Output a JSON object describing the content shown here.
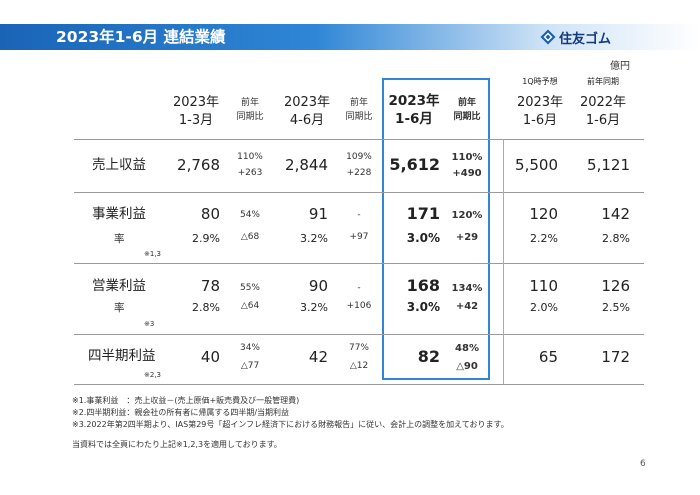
{
  "title": "2023年1-6月 連結業績",
  "logo": {
    "text": "住友ゴム",
    "icon": "sumitomo-diamond-logo"
  },
  "unit": "億円",
  "columns": {
    "c1": {
      "line1": "2023年",
      "line2": "1-3月"
    },
    "c2": {
      "line1": "前年",
      "line2": "同期比"
    },
    "c3": {
      "line1": "2023年",
      "line2": "4-6月"
    },
    "c4": {
      "line1": "前年",
      "line2": "同期比"
    },
    "c5": {
      "line1": "2023年",
      "line2": "1-6月"
    },
    "c6": {
      "line1": "前年",
      "line2": "同期比"
    },
    "c7": {
      "note": "1Q時予想",
      "line1": "2023年",
      "line2": "1-6月"
    },
    "c8": {
      "note": "前年同期",
      "line1": "2022年",
      "line2": "1-6月"
    }
  },
  "rows": {
    "revenue": {
      "label": "売上収益",
      "q1": "2,768",
      "q1_pct": "110%",
      "q1_diff": "+263",
      "q2": "2,844",
      "q2_pct": "109%",
      "q2_diff": "+228",
      "h1": "5,612",
      "h1_pct": "110%",
      "h1_diff": "+490",
      "forecast": "5,500",
      "prior": "5,121"
    },
    "business_profit": {
      "label": "事業利益",
      "q1": "80",
      "q1_pct": "54%",
      "q1_diff": "△68",
      "q2": "91",
      "q2_pct": "-",
      "q2_diff": "+97",
      "h1": "171",
      "h1_pct": "120%",
      "h1_diff": "+29",
      "forecast": "120",
      "prior": "142",
      "rate_label": "率",
      "q1_rate": "2.9%",
      "q2_rate": "3.2%",
      "h1_rate": "3.0%",
      "forecast_rate": "2.2%",
      "prior_rate": "2.8%",
      "note": "※1,3"
    },
    "operating_profit": {
      "label": "営業利益",
      "q1": "78",
      "q1_pct": "55%",
      "q1_diff": "△64",
      "q2": "90",
      "q2_pct": "-",
      "q2_diff": "+106",
      "h1": "168",
      "h1_pct": "134%",
      "h1_diff": "+42",
      "forecast": "110",
      "prior": "126",
      "rate_label": "率",
      "q1_rate": "2.8%",
      "q2_rate": "3.2%",
      "h1_rate": "3.0%",
      "forecast_rate": "2.0%",
      "prior_rate": "2.5%",
      "note": "※3"
    },
    "net_profit": {
      "label": "四半期利益",
      "q1": "40",
      "q1_pct": "34%",
      "q1_diff": "△77",
      "q2": "42",
      "q2_pct": "77%",
      "q2_diff": "△12",
      "h1": "82",
      "h1_pct": "48%",
      "h1_diff": "△90",
      "forecast": "65",
      "prior": "172",
      "note": "※2,3"
    }
  },
  "footnotes": [
    "※1.事業利益　：売上収益－(売上原価+販売費及び一般管理費)",
    "※2.四半期利益：親会社の所有者に帰属する四半期/当期利益",
    "※3.2022年第2四半期より、IAS第29号「超インフレ経済下における財務報告」に従い、会計上の調整を加えております。",
    "当資料では全頁にわたり上記※1,2,3を適用しております。"
  ],
  "page_number": "6"
}
